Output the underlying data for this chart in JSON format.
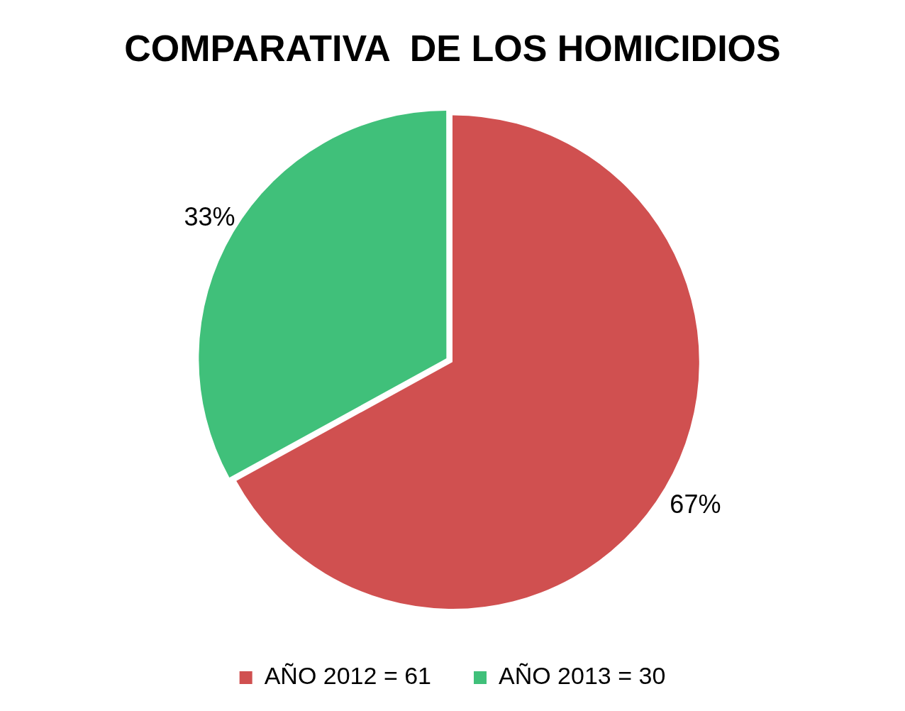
{
  "chart_data": {
    "type": "pie",
    "title": "COMPARATIVA  DE LOS HOMICIDIOS",
    "categories": [
      "AÑO 2012 = 61",
      "AÑO 2013 = 30"
    ],
    "values": [
      67,
      33
    ],
    "colors": [
      "#d05050",
      "#40c07a"
    ],
    "value_labels": [
      "67%",
      "33%"
    ],
    "legend": "bottom"
  }
}
